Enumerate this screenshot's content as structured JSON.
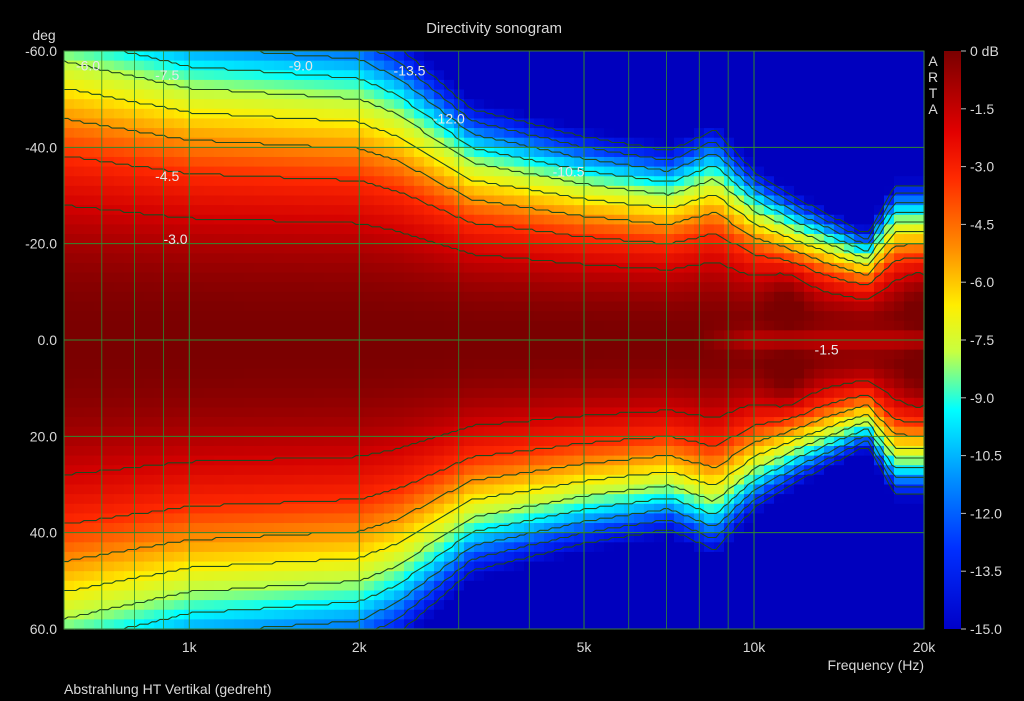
{
  "chart_data": {
    "type": "heatmap",
    "title": "Directivity sonogram",
    "xlabel": "Frequency (Hz)",
    "ylabel": "deg",
    "x_scale": "log",
    "xlim": [
      600,
      20000
    ],
    "ylim": [
      -60,
      60
    ],
    "x_ticks": [
      {
        "value": 1000,
        "label": "1k"
      },
      {
        "value": 2000,
        "label": "2k"
      },
      {
        "value": 5000,
        "label": "5k"
      },
      {
        "value": 10000,
        "label": "10k"
      },
      {
        "value": 20000,
        "label": "20k"
      }
    ],
    "x_minor": [
      600,
      700,
      800,
      900,
      3000,
      4000,
      6000,
      7000,
      8000,
      9000
    ],
    "y_ticks": [
      {
        "value": -60,
        "label": "-60.0"
      },
      {
        "value": -40,
        "label": "-40.0"
      },
      {
        "value": -20,
        "label": "-20.0"
      },
      {
        "value": 0,
        "label": "0.0"
      },
      {
        "value": 20,
        "label": "20.0"
      },
      {
        "value": 40,
        "label": "40.0"
      },
      {
        "value": 60,
        "label": "60.0"
      }
    ],
    "colorbar": {
      "range": [
        -15,
        0
      ],
      "labels": [
        "0 dB",
        "-1.5",
        "-3.0",
        "-4.5",
        "-6.0",
        "-7.5",
        "-9.0",
        "-10.5",
        "-12.0",
        "-13.5",
        "-15.0"
      ]
    },
    "contour_levels": [
      -1.5,
      -3,
      -4.5,
      -6,
      -7.5,
      -9,
      -10.5,
      -12,
      -13.5
    ],
    "contour_labels": [
      {
        "text": "-6.0",
        "freq": 630,
        "deg": -57
      },
      {
        "text": "-7.5",
        "freq": 870,
        "deg": -55
      },
      {
        "text": "-9.0",
        "freq": 1500,
        "deg": -57
      },
      {
        "text": "-13.5",
        "freq": 2300,
        "deg": -56
      },
      {
        "text": "-12.0",
        "freq": 2700,
        "deg": -46
      },
      {
        "text": "-10.5",
        "freq": 4400,
        "deg": -35
      },
      {
        "text": "-4.5",
        "freq": 870,
        "deg": -34
      },
      {
        "text": "-3.0",
        "freq": 900,
        "deg": -21
      },
      {
        "text": "-1.5",
        "freq": 12800,
        "deg": 2
      }
    ],
    "grid": true,
    "watermark": "ARTA"
  },
  "footer": "Abstrahlung HT Vertikal (gedreht)"
}
